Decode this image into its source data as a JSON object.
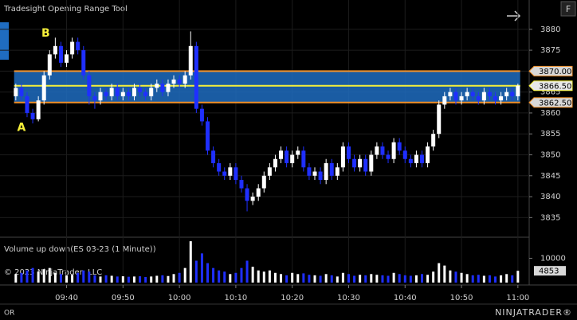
{
  "chart_data": [
    {
      "type": "candlestick",
      "title": "Tradesight Opening Range Tool",
      "open": [
        3864,
        3866,
        3864,
        3860,
        3858.5,
        3863,
        3869,
        3874,
        3876,
        3872,
        3874,
        3877,
        3875,
        3869,
        3864,
        3863,
        3865,
        3864,
        3866,
        3864,
        3865,
        3864,
        3866,
        3865,
        3864,
        3866,
        3867,
        3865,
        3867,
        3868,
        3867,
        3869,
        3876,
        3861,
        3858,
        3851,
        3848,
        3846,
        3845,
        3847,
        3844,
        3842,
        3839,
        3840,
        3842,
        3845,
        3847,
        3849,
        3851,
        3848,
        3850,
        3851,
        3847,
        3845,
        3846,
        3844,
        3848,
        3845,
        3847,
        3852,
        3849,
        3847,
        3849,
        3846,
        3850,
        3852,
        3850,
        3849,
        3853,
        3851,
        3849,
        3848,
        3850,
        3848,
        3852,
        3855,
        3862,
        3864,
        3865,
        3863,
        3864,
        3865,
        3864,
        3863,
        3865,
        3864,
        3863,
        3864,
        3865,
        3864
      ],
      "high": [
        3867,
        3867,
        3865,
        3861,
        3864,
        3870,
        3875,
        3878,
        3877,
        3875,
        3878,
        3878,
        3876,
        3870,
        3865,
        3866,
        3866,
        3867,
        3867,
        3866,
        3866,
        3867,
        3867,
        3866,
        3867,
        3868,
        3868,
        3868,
        3869,
        3869,
        3870,
        3879.5,
        3877,
        3862,
        3859,
        3852,
        3849,
        3847,
        3848,
        3848,
        3845,
        3843,
        3841,
        3843,
        3846,
        3848,
        3850,
        3852,
        3852,
        3851,
        3852,
        3852,
        3848,
        3847,
        3847,
        3849,
        3849,
        3848,
        3853,
        3853,
        3850,
        3850,
        3850,
        3851,
        3853,
        3853,
        3851,
        3854,
        3854,
        3852,
        3850,
        3851,
        3851,
        3853,
        3856,
        3863,
        3865,
        3866,
        3866,
        3865,
        3866,
        3866,
        3865,
        3866,
        3866,
        3865,
        3865,
        3866,
        3866,
        3867
      ],
      "low": [
        3863,
        3863,
        3859,
        3857.5,
        3858,
        3862,
        3868,
        3873,
        3871,
        3871,
        3873,
        3874,
        3868,
        3862,
        3861,
        3862,
        3863,
        3863,
        3863,
        3863,
        3863,
        3863,
        3864,
        3863,
        3863,
        3865,
        3864,
        3864,
        3866,
        3866,
        3866,
        3868,
        3860,
        3857,
        3850,
        3847,
        3845,
        3844,
        3844,
        3843,
        3841,
        3836.5,
        3838,
        3839,
        3841,
        3844,
        3846,
        3848,
        3847,
        3847,
        3849,
        3846,
        3844,
        3844,
        3843,
        3843,
        3844,
        3844,
        3846,
        3848,
        3846,
        3846,
        3845,
        3845,
        3849,
        3849,
        3848,
        3848,
        3850,
        3848,
        3847,
        3847,
        3847,
        3847,
        3851,
        3854,
        3861,
        3863,
        3862,
        3862,
        3863,
        3863,
        3862,
        3862,
        3863,
        3862,
        3862,
        3863,
        3863,
        3863
      ],
      "close": [
        3866,
        3864,
        3860,
        3858.5,
        3863,
        3869,
        3874,
        3876,
        3872,
        3874,
        3877,
        3875,
        3869,
        3864,
        3863,
        3865,
        3864,
        3866,
        3864,
        3865,
        3864,
        3866,
        3865,
        3864,
        3866,
        3867,
        3865,
        3867,
        3868,
        3867,
        3869,
        3876,
        3861,
        3858,
        3851,
        3848,
        3846,
        3845,
        3847,
        3844,
        3842,
        3839,
        3840,
        3842,
        3845,
        3847,
        3849,
        3851,
        3848,
        3850,
        3851,
        3847,
        3845,
        3846,
        3844,
        3848,
        3845,
        3847,
        3852,
        3849,
        3847,
        3849,
        3846,
        3850,
        3852,
        3850,
        3849,
        3853,
        3851,
        3849,
        3848,
        3850,
        3848,
        3852,
        3855,
        3862,
        3864,
        3865,
        3863,
        3864,
        3865,
        3864,
        3863,
        3865,
        3864,
        3863,
        3864,
        3865,
        3864,
        3866.5
      ],
      "up_color": "#ffffff",
      "down_color": "#1f2fff",
      "ylim": [
        3830.5,
        3887
      ],
      "yticks": [
        3835,
        3840,
        3845,
        3850,
        3855,
        3860,
        3865,
        3870,
        3875,
        3880
      ],
      "xlim": [
        -2.8,
        91
      ],
      "xticks": [
        {
          "value": 9,
          "label": "09:40"
        },
        {
          "value": 19,
          "label": "09:50"
        },
        {
          "value": 29,
          "label": "10:00"
        },
        {
          "value": 39,
          "label": "10:10"
        },
        {
          "value": 49,
          "label": "10:20"
        },
        {
          "value": 59,
          "label": "10:30"
        },
        {
          "value": 69,
          "label": "10:40"
        },
        {
          "value": 79,
          "label": "10:50"
        },
        {
          "value": 89,
          "label": "11:00"
        }
      ],
      "opening_range": {
        "high": {
          "value": 3870,
          "label": "3870.00"
        },
        "mid": {
          "value": 3866.5,
          "label": "3866.50"
        },
        "low": {
          "value": 3862.5,
          "label": "3862.50"
        },
        "fill": "#1f6cc0",
        "edge_color": "#f0902a",
        "mid_color": "#f6f03a"
      },
      "annotations": [
        {
          "text": "A",
          "x": 1,
          "y": 3856.5
        },
        {
          "text": "B",
          "x": 5.3,
          "y": 3879
        }
      ]
    },
    {
      "type": "bar",
      "title": "Volume up down(ES 03-23 (1 Minute))",
      "values": [
        3500,
        4000,
        5000,
        6000,
        4500,
        5500,
        6000,
        4000,
        3500,
        3000,
        3200,
        4000,
        5000,
        4500,
        3000,
        2500,
        3000,
        2800,
        2500,
        2600,
        2400,
        2500,
        2600,
        2300,
        2500,
        2800,
        3000,
        2700,
        3500,
        4000,
        6000,
        17000,
        9000,
        12000,
        8000,
        6000,
        5000,
        4500,
        3500,
        4000,
        6000,
        9000,
        6500,
        5000,
        4500,
        5000,
        4000,
        3500,
        3000,
        4000,
        3500,
        3800,
        3200,
        3000,
        2800,
        3500,
        3000,
        2500,
        4000,
        3500,
        2800,
        3200,
        3000,
        3500,
        3200,
        3000,
        2800,
        4000,
        3500,
        3000,
        2800,
        3000,
        3500,
        3200,
        4500,
        8000,
        7000,
        5000,
        4500,
        4000,
        3500,
        3000,
        3200,
        2800,
        3000,
        2500,
        3000,
        3500,
        3000,
        4853
      ],
      "ylim": [
        0,
        18000
      ],
      "yticks": [
        10000
      ]
    }
  ],
  "ui": {
    "copyright": "© 2023 NinjaTrader, LLC",
    "footer_tab": "OR",
    "logo": "NINJATRADER®",
    "button": "F"
  }
}
